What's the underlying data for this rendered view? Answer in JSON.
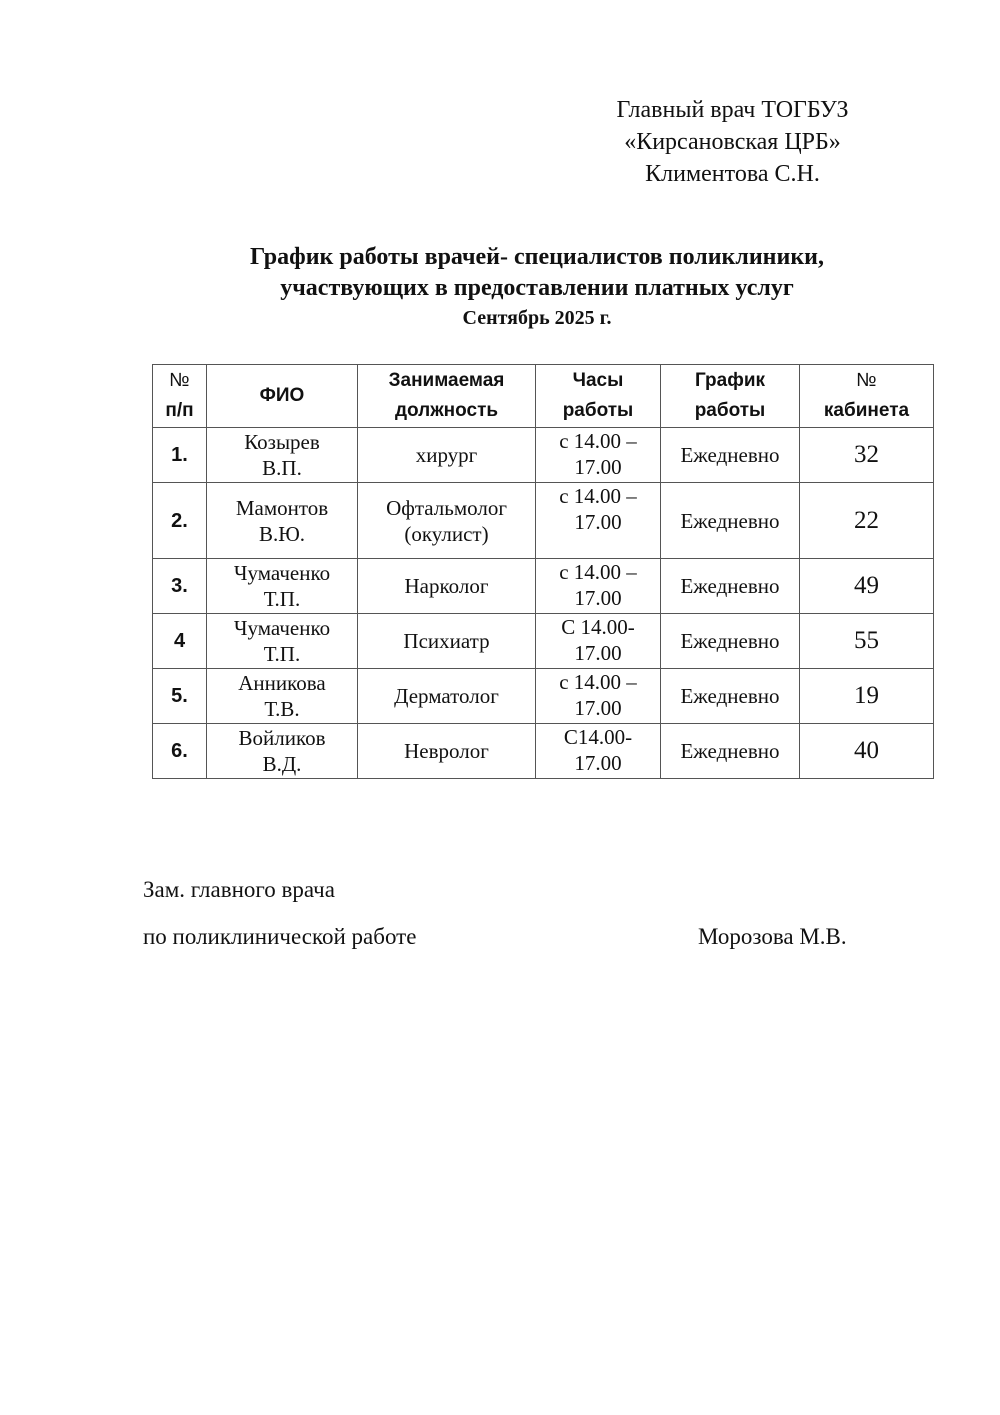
{
  "approval": {
    "lines": [
      "Главный врач ТОГБУЗ",
      "«Кирсановская ЦРБ»",
      "Климентова С.Н."
    ]
  },
  "title": {
    "line1": "График работы врачей- специалистов поликлиники,",
    "line2": "участвующих в предоставлении платных услуг",
    "subtitle": "Сентябрь  2025 г."
  },
  "table": {
    "headers": {
      "num_top": "№",
      "num_bottom": "п/п",
      "name": "ФИО",
      "position_top": "Занимаемая",
      "position_bottom": "должность",
      "hours_top": "Часы",
      "hours_bottom": "работы",
      "schedule_top": "График",
      "schedule_bottom": "работы",
      "cabinet_top": "№",
      "cabinet_bottom": "кабинета"
    },
    "rows": [
      {
        "num": "1.",
        "name1": "Козырев",
        "name2": "В.П.",
        "pos1": "хирург",
        "pos2": "",
        "hours1": "с 14.00 –",
        "hours2": "17.00",
        "schedule": "Ежедневно",
        "cabinet": "32"
      },
      {
        "num": "2.",
        "name1": "Мамонтов",
        "name2": "В.Ю.",
        "pos1": "Офтальмолог",
        "pos2": "(окулист)",
        "hours1": "с 14.00 –",
        "hours2": "17.00",
        "schedule": "Ежедневно",
        "cabinet": "22"
      },
      {
        "num": "3.",
        "name1": "Чумаченко",
        "name2": "Т.П.",
        "pos1": "Нарколог",
        "pos2": "",
        "hours1": "с 14.00 –",
        "hours2": "17.00",
        "schedule": "Ежедневно",
        "cabinet": "49"
      },
      {
        "num": "4",
        "name1": "Чумаченко",
        "name2": "Т.П.",
        "pos1": "Психиатр",
        "pos2": "",
        "hours1": "С 14.00-",
        "hours2": "17.00",
        "schedule": "Ежедневно",
        "cabinet": "55"
      },
      {
        "num": "5.",
        "name1": "Анникова",
        "name2": "Т.В.",
        "pos1": "Дерматолог",
        "pos2": "",
        "hours1": "с 14.00 –",
        "hours2": "17.00",
        "schedule": "Ежедневно",
        "cabinet": "19"
      },
      {
        "num": "6.",
        "name1": "Войликов",
        "name2": "В.Д.",
        "pos1": "Невролог",
        "pos2": "",
        "hours1": "С14.00-",
        "hours2": "17.00",
        "schedule": "Ежедневно",
        "cabinet": "40"
      }
    ]
  },
  "signature": {
    "role_line1": "Зам. главного врача",
    "role_line2": "по поликлинической работе",
    "name": "Морозова М.В."
  }
}
